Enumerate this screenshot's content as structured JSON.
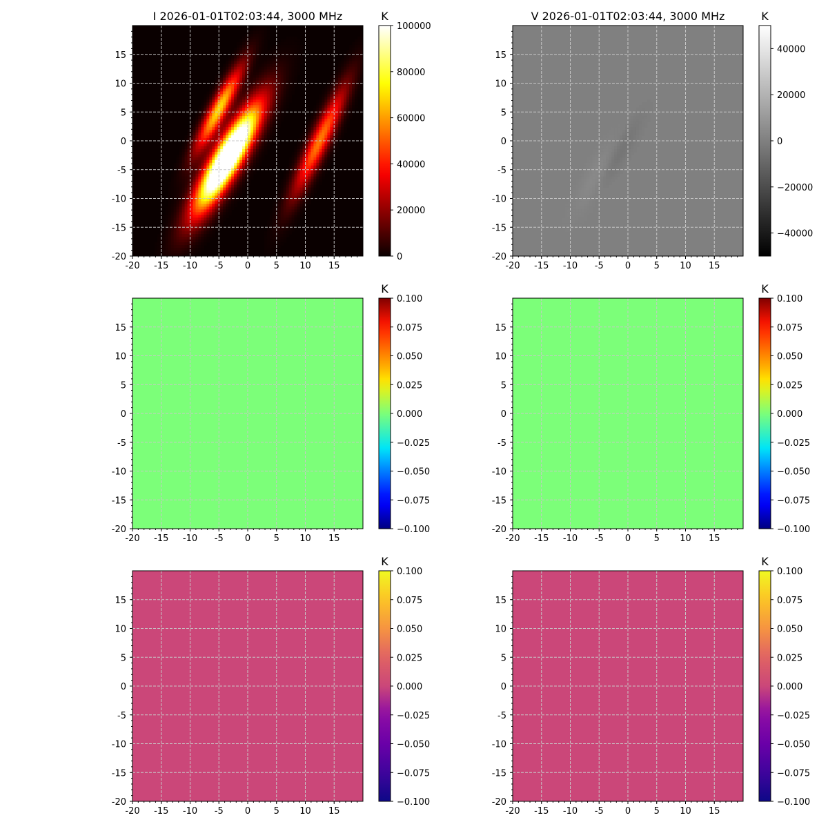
{
  "chart_data": [
    {
      "type": "heatmap",
      "panel": "I",
      "title": "I 2026-01-01T02:03:44, 3000 MHz",
      "colormap": "hot",
      "colorbar_label": "K",
      "clim": [
        0,
        100000
      ],
      "colorbar_ticks": [
        "0",
        "20000",
        "40000",
        "60000",
        "80000",
        "100000"
      ],
      "xlim": [
        -20,
        20
      ],
      "ylim": [
        -20,
        20
      ],
      "xticks": [
        "-20",
        "-15",
        "-10",
        "-5",
        "0",
        "5",
        "10",
        "15"
      ],
      "yticks": [
        "-20",
        "-15",
        "-10",
        "-5",
        "0",
        "5",
        "10",
        "15"
      ],
      "grid": true,
      "sources": [
        {
          "x": -3.5,
          "y": -3.0,
          "peak": 150000,
          "major": 7.0,
          "minor": 1.6,
          "angle_deg": 60
        },
        {
          "x": -5.0,
          "y": 5.5,
          "peak": 70000,
          "major": 5.5,
          "minor": 1.0,
          "angle_deg": 62
        },
        {
          "x": 12.5,
          "y": 0.0,
          "peak": 55000,
          "major": 7.0,
          "minor": 1.1,
          "angle_deg": 65
        }
      ]
    },
    {
      "type": "heatmap",
      "panel": "V",
      "title": "V 2026-01-01T02:03:44, 3000 MHz",
      "colormap": "gray",
      "colorbar_label": "K",
      "clim": [
        -50000,
        50000
      ],
      "colorbar_ticks": [
        "−40000",
        "−20000",
        "0",
        "20000",
        "40000"
      ],
      "xlim": [
        -20,
        20
      ],
      "ylim": [
        -20,
        20
      ],
      "xticks": [
        "-20",
        "-15",
        "-10",
        "-5",
        "0",
        "5",
        "10",
        "15"
      ],
      "yticks": [
        "-20",
        "-15",
        "-10",
        "-5",
        "0",
        "5",
        "10",
        "15"
      ],
      "grid": true,
      "sources": [
        {
          "x": -5.0,
          "y": -6.0,
          "peak": 5000,
          "major": 5.0,
          "minor": 1.4,
          "angle_deg": 60
        },
        {
          "x": -2.0,
          "y": -3.0,
          "peak": -6000,
          "major": 5.0,
          "minor": 1.0,
          "angle_deg": 60
        }
      ]
    },
    {
      "type": "heatmap",
      "panel": "row2-left",
      "title": "",
      "colormap": "jet",
      "colorbar_label": "K",
      "clim": [
        -0.1,
        0.1
      ],
      "colorbar_ticks": [
        "−0.100",
        "−0.075",
        "−0.050",
        "−0.025",
        "0.000",
        "0.025",
        "0.050",
        "0.075",
        "0.100"
      ],
      "xlim": [
        -20,
        20
      ],
      "ylim": [
        -20,
        20
      ],
      "xticks": [
        "-20",
        "-15",
        "-10",
        "-5",
        "0",
        "5",
        "10",
        "15"
      ],
      "yticks": [
        "-20",
        "-15",
        "-10",
        "-5",
        "0",
        "5",
        "10",
        "15"
      ],
      "grid": true,
      "value": 0
    },
    {
      "type": "heatmap",
      "panel": "row2-right",
      "title": "",
      "colormap": "jet",
      "colorbar_label": "K",
      "clim": [
        -0.1,
        0.1
      ],
      "colorbar_ticks": [
        "−0.100",
        "−0.075",
        "−0.050",
        "−0.025",
        "0.000",
        "0.025",
        "0.050",
        "0.075",
        "0.100"
      ],
      "xlim": [
        -20,
        20
      ],
      "ylim": [
        -20,
        20
      ],
      "xticks": [
        "-20",
        "-15",
        "-10",
        "-5",
        "0",
        "5",
        "10",
        "15"
      ],
      "yticks": [
        "-20",
        "-15",
        "-10",
        "-5",
        "0",
        "5",
        "10",
        "15"
      ],
      "grid": true,
      "value": 0
    },
    {
      "type": "heatmap",
      "panel": "row3-left",
      "title": "",
      "colormap": "plasma",
      "colorbar_label": "K",
      "clim": [
        -0.1,
        0.1
      ],
      "colorbar_ticks": [
        "−0.100",
        "−0.075",
        "−0.050",
        "−0.025",
        "0.000",
        "0.025",
        "0.050",
        "0.075",
        "0.100"
      ],
      "xlim": [
        -20,
        20
      ],
      "ylim": [
        -20,
        20
      ],
      "xticks": [
        "-20",
        "-15",
        "-10",
        "-5",
        "0",
        "5",
        "10",
        "15"
      ],
      "yticks": [
        "-20",
        "-15",
        "-10",
        "-5",
        "0",
        "5",
        "10",
        "15"
      ],
      "grid": true,
      "value": 0
    },
    {
      "type": "heatmap",
      "panel": "row3-right",
      "title": "",
      "colormap": "plasma",
      "colorbar_label": "K",
      "clim": [
        -0.1,
        0.1
      ],
      "colorbar_ticks": [
        "−0.100",
        "−0.075",
        "−0.050",
        "−0.025",
        "0.000",
        "0.025",
        "0.050",
        "0.075",
        "0.100"
      ],
      "xlim": [
        -20,
        20
      ],
      "ylim": [
        -20,
        20
      ],
      "xticks": [
        "-20",
        "-15",
        "-10",
        "-5",
        "0",
        "5",
        "10",
        "15"
      ],
      "yticks": [
        "-20",
        "-15",
        "-10",
        "-5",
        "0",
        "5",
        "10",
        "15"
      ],
      "grid": true,
      "value": 0
    }
  ]
}
